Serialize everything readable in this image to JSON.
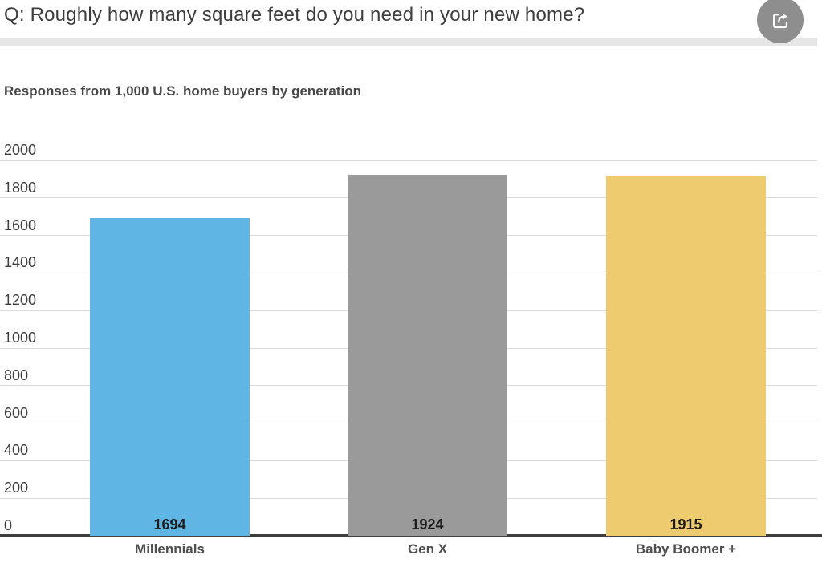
{
  "header": {
    "title": "Q: Roughly how many square feet do you need in your new home?"
  },
  "subtitle": "Responses from 1,000 U.S. home buyers by generation",
  "colors": {
    "title_text": "#3d3d3d",
    "subtitle_text": "#484848",
    "share_button_bg": "#8e8e8e",
    "share_glyph": "#ffffff",
    "divider": "#e6e6e6",
    "gridline": "#dadada",
    "axis": "#3e3e3e",
    "tick_text": "#3e3e3e",
    "value_label_text": "#1b1b1b",
    "category_label_text": "#4f4f4f"
  },
  "chart_data": {
    "type": "bar",
    "title": "Q: Roughly how many square feet do you need in your new home?",
    "subtitle": "Responses from 1,000 U.S. home buyers by generation",
    "categories": [
      "Millennials",
      "Gen X",
      "Baby Boomer +"
    ],
    "values": [
      1694,
      1924,
      1915
    ],
    "bar_colors": [
      "#5fb5e3",
      "#9a9a9a",
      "#efcb70"
    ],
    "xlabel": "",
    "ylabel": "",
    "ylim": [
      0,
      2000
    ],
    "yticks": [
      0,
      200,
      400,
      600,
      800,
      1000,
      1200,
      1400,
      1600,
      1800,
      2000
    ],
    "grid": true,
    "value_labels": true,
    "legend": false
  }
}
